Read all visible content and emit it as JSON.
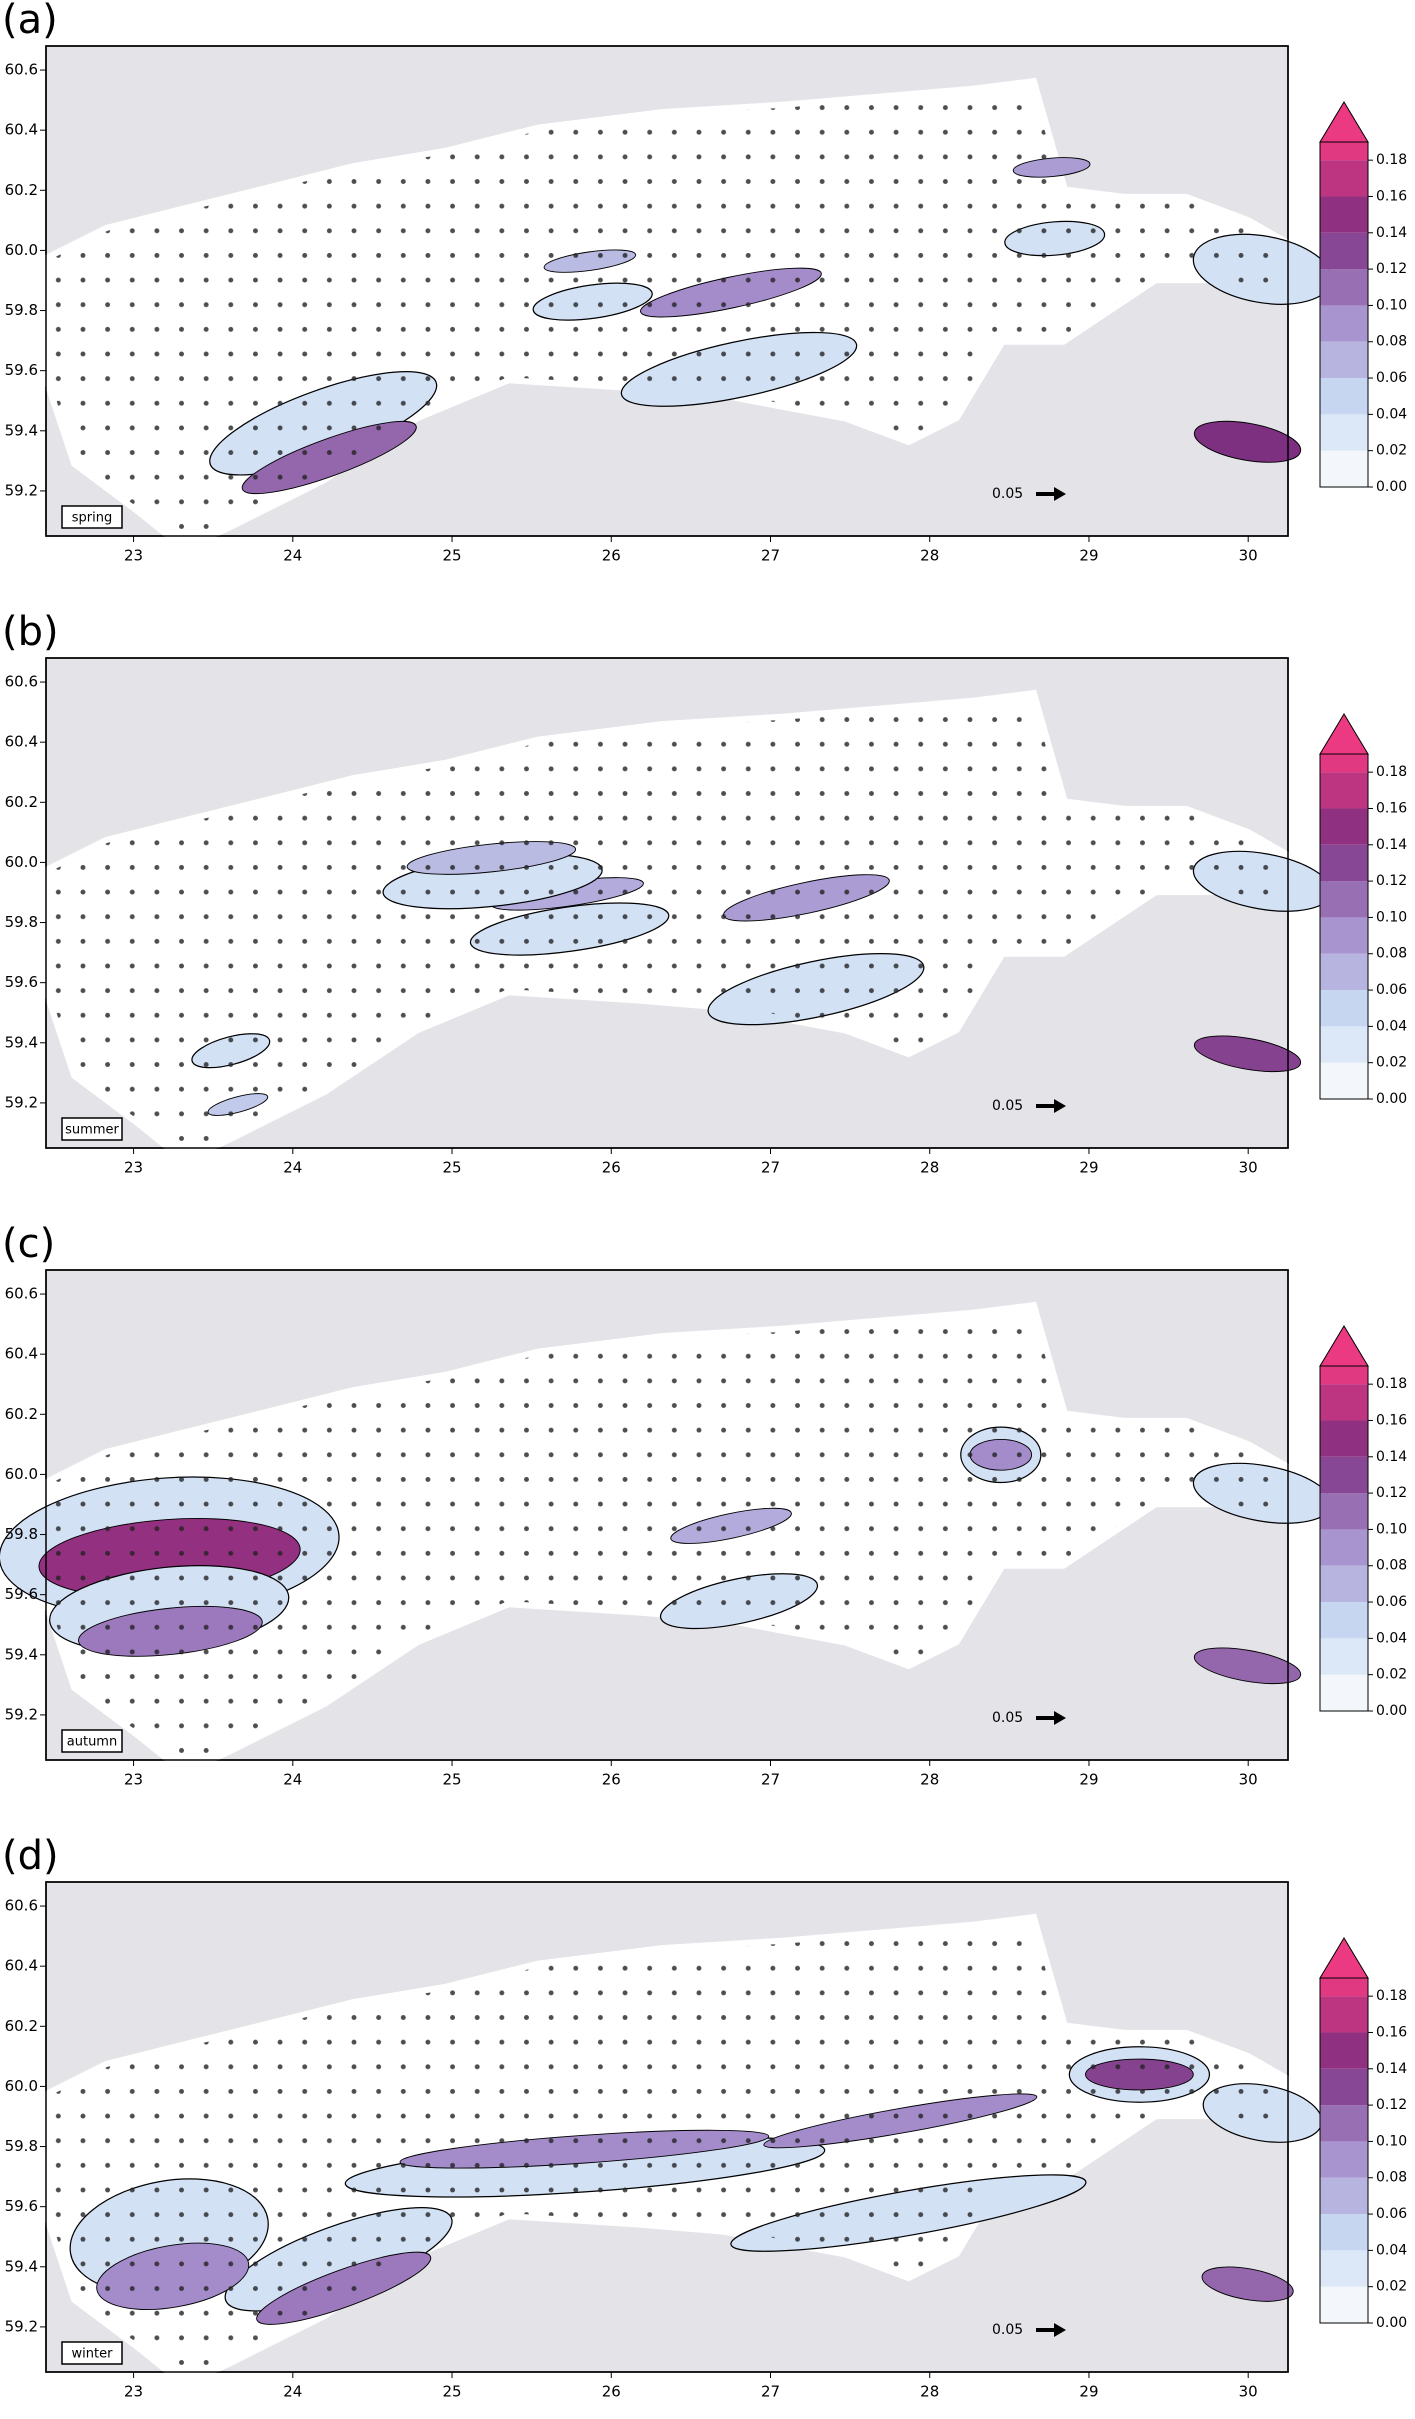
{
  "panels": [
    {
      "label": "(a)",
      "season": "spring"
    },
    {
      "label": "(b)",
      "season": "summer"
    },
    {
      "label": "(c)",
      "season": "autumn"
    },
    {
      "label": "(d)",
      "season": "winter"
    }
  ],
  "xlim": [
    22.45,
    30.25
  ],
  "ylim": [
    59.05,
    60.68
  ],
  "xticks": [
    23,
    24,
    25,
    26,
    27,
    28,
    29,
    30
  ],
  "yticks": [
    59.2,
    59.4,
    59.6,
    59.8,
    {
      "value": 60.0,
      "label": "60.0"
    },
    60.2,
    60.4,
    60.6
  ],
  "reference_arrow_label": "0.05",
  "colorbar": {
    "lim": [
      0,
      0.19
    ],
    "ticks": [
      {
        "value": 0,
        "label": "0.00"
      },
      {
        "value": 0.02,
        "label": "0.02"
      },
      {
        "value": 0.04,
        "label": "0.04"
      },
      {
        "value": 0.06,
        "label": "0.06"
      },
      {
        "value": 0.08,
        "label": "0.08"
      },
      {
        "value": 0.1,
        "label": "0.10"
      },
      {
        "value": 0.12,
        "label": "0.12"
      },
      {
        "value": 0.14,
        "label": "0.14"
      },
      {
        "value": 0.16,
        "label": "0.16"
      },
      {
        "value": 0.18,
        "label": "0.18"
      }
    ],
    "colormap": [
      "#ffffff",
      "#c8daf2",
      "#a48ccb",
      "#7d2f80",
      "#ec3a82"
    ]
  }
}
